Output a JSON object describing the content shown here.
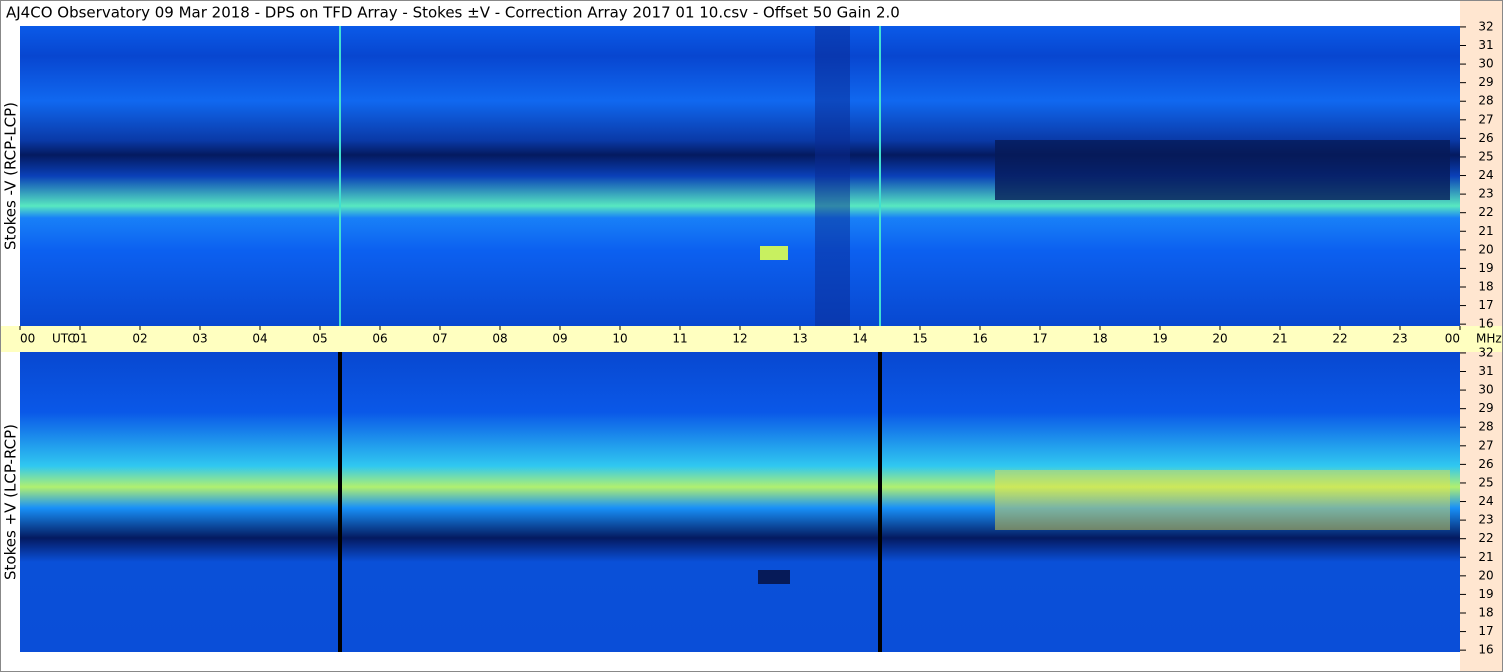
{
  "title": "AJ4CO Observatory  09 Mar 2018  -  DPS on TFD Array  -  Stokes ±V  -  Correction Array 2017 01 10.csv  -  Offset 50  Gain 2.0",
  "x_unit": "UTC",
  "y_unit": "MHz",
  "chart_data": [
    {
      "type": "heatmap",
      "ylabel": "Stokes -V (RCP-LCP)",
      "xlim": [
        0,
        24
      ],
      "ylim": [
        15.9,
        32.05
      ],
      "xticks": [
        {
          "value": 0,
          "label": "00"
        },
        {
          "value": 1,
          "label": "01"
        },
        {
          "value": 2,
          "label": "02"
        },
        {
          "value": 3,
          "label": "03"
        },
        {
          "value": 4,
          "label": "04"
        },
        {
          "value": 5,
          "label": "05"
        },
        {
          "value": 6,
          "label": "06"
        },
        {
          "value": 7,
          "label": "07"
        },
        {
          "value": 8,
          "label": "08"
        },
        {
          "value": 9,
          "label": "09"
        },
        10,
        11,
        12,
        13,
        14,
        15,
        16,
        17,
        18,
        19,
        20,
        21,
        22,
        23,
        {
          "value": 24,
          "label": "00"
        }
      ],
      "yticks": [
        16,
        17,
        18,
        19,
        20,
        21,
        22,
        23,
        24,
        25,
        26,
        27,
        28,
        29,
        30,
        31,
        32
      ]
    },
    {
      "type": "heatmap",
      "ylabel": "Stokes +V (LCP-RCP)",
      "xlim": [
        0,
        24
      ],
      "ylim": [
        15.9,
        32.05
      ],
      "yticks": [
        16,
        17,
        18,
        19,
        20,
        21,
        22,
        23,
        24,
        25,
        26,
        27,
        28,
        29,
        30,
        31,
        32
      ]
    }
  ]
}
